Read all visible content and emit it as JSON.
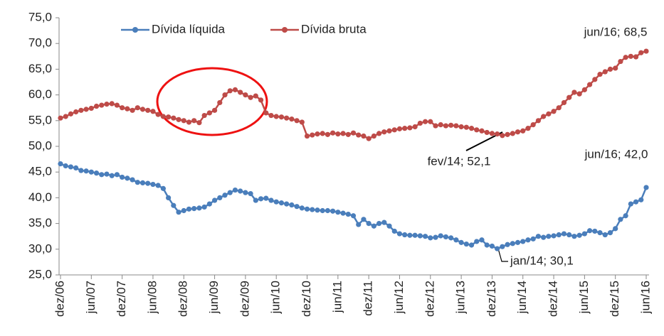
{
  "chart_data": {
    "type": "line",
    "categories": [
      "dez/06",
      null,
      null,
      null,
      null,
      null,
      "jun/07",
      null,
      null,
      null,
      null,
      null,
      "dez/07",
      null,
      null,
      null,
      null,
      null,
      "jun/08",
      null,
      null,
      null,
      null,
      null,
      "dez/08",
      null,
      null,
      null,
      null,
      null,
      "jun/09",
      null,
      null,
      null,
      null,
      null,
      "dez/09",
      null,
      null,
      null,
      null,
      null,
      "jun/10",
      null,
      null,
      null,
      null,
      null,
      "dez/10",
      null,
      null,
      null,
      null,
      null,
      "jun/11",
      null,
      null,
      null,
      null,
      null,
      "dez/11",
      null,
      null,
      null,
      null,
      null,
      "jun/12",
      null,
      null,
      null,
      null,
      null,
      "dez/12",
      null,
      null,
      null,
      null,
      null,
      "jun/13",
      null,
      null,
      null,
      null,
      null,
      "dez/13",
      null,
      null,
      null,
      null,
      null,
      "jun/14",
      null,
      null,
      null,
      null,
      null,
      "dez/14",
      null,
      null,
      null,
      null,
      null,
      "jun/15",
      null,
      null,
      null,
      null,
      null,
      "dez/15",
      null,
      null,
      null,
      null,
      null,
      "jun/16"
    ],
    "series": [
      {
        "name": "Dívida líquida",
        "color": "#4a7ebb",
        "values": [
          46.6,
          46.2,
          46.0,
          45.8,
          45.3,
          45.2,
          45.0,
          44.8,
          44.5,
          44.6,
          44.3,
          44.5,
          44.0,
          43.8,
          43.5,
          43.0,
          42.9,
          42.8,
          42.6,
          42.4,
          41.8,
          40.0,
          38.5,
          37.2,
          37.5,
          37.8,
          37.9,
          38.0,
          38.2,
          38.8,
          39.5,
          40.0,
          40.5,
          41.0,
          41.5,
          41.3,
          41.0,
          40.8,
          39.5,
          39.8,
          39.9,
          39.5,
          39.2,
          39.0,
          38.8,
          38.6,
          38.3,
          38.0,
          37.8,
          37.7,
          37.6,
          37.5,
          37.5,
          37.4,
          37.2,
          37.0,
          36.8,
          36.5,
          34.8,
          35.8,
          35.0,
          34.5,
          35.0,
          35.2,
          34.5,
          33.5,
          33.0,
          32.8,
          32.7,
          32.7,
          32.6,
          32.5,
          32.2,
          32.3,
          32.6,
          32.4,
          32.2,
          31.8,
          31.3,
          31.0,
          30.8,
          31.5,
          31.8,
          30.8,
          30.6,
          30.1,
          30.5,
          30.9,
          31.1,
          31.3,
          31.5,
          31.8,
          32.0,
          32.5,
          32.3,
          32.5,
          32.6,
          32.8,
          33.0,
          32.8,
          32.5,
          32.7,
          33.0,
          33.6,
          33.5,
          33.2,
          32.8,
          33.2,
          34.0,
          35.8,
          36.5,
          38.8,
          39.2,
          39.6,
          42.0
        ]
      },
      {
        "name": "Dívida bruta",
        "color": "#be4b48",
        "values": [
          55.5,
          55.8,
          56.3,
          56.7,
          57.0,
          57.2,
          57.4,
          57.8,
          58.0,
          58.2,
          58.3,
          58.0,
          57.5,
          57.3,
          57.0,
          57.5,
          57.2,
          57.0,
          56.8,
          56.2,
          55.8,
          55.7,
          55.5,
          55.2,
          55.0,
          54.7,
          55.0,
          54.6,
          56.0,
          56.5,
          57.0,
          58.5,
          60.0,
          60.8,
          61.0,
          60.5,
          60.0,
          59.5,
          59.8,
          59.0,
          56.5,
          56.0,
          55.8,
          55.7,
          55.5,
          55.3,
          55.0,
          54.7,
          52.0,
          52.2,
          52.4,
          52.5,
          52.3,
          52.6,
          52.4,
          52.5,
          52.3,
          52.6,
          52.2,
          52.0,
          51.5,
          52.0,
          52.5,
          52.8,
          53.0,
          53.2,
          53.4,
          53.5,
          53.6,
          53.8,
          54.5,
          54.8,
          54.8,
          54.0,
          54.2,
          54.0,
          54.1,
          54.0,
          53.8,
          53.7,
          53.5,
          53.2,
          53.0,
          52.7,
          52.5,
          52.4,
          52.1,
          52.3,
          52.5,
          52.8,
          53.0,
          53.5,
          54.2,
          55.0,
          55.8,
          56.3,
          56.8,
          57.5,
          58.5,
          59.5,
          60.5,
          60.2,
          61.0,
          62.0,
          63.0,
          64.0,
          64.5,
          65.0,
          65.2,
          66.5,
          67.3,
          67.5,
          67.4,
          68.2,
          68.5
        ]
      }
    ],
    "ylim": [
      25,
      75
    ],
    "yticks": [
      {
        "value": 25,
        "label": "25,0"
      },
      {
        "value": 30,
        "label": "30,0"
      },
      {
        "value": 35,
        "label": "35,0"
      },
      {
        "value": 40,
        "label": "40,0"
      },
      {
        "value": 45,
        "label": "45,0"
      },
      {
        "value": 50,
        "label": "50,0"
      },
      {
        "value": 55,
        "label": "55,0"
      },
      {
        "value": 60,
        "label": "60,0"
      },
      {
        "value": 65,
        "label": "65,0"
      },
      {
        "value": 70,
        "label": "70,0"
      },
      {
        "value": 75,
        "label": "75,0"
      }
    ],
    "grid": false,
    "legend": "top",
    "annotations": [
      "jun/16; 68,5",
      "jun/16; 42,0",
      "fev/14; 52,1",
      "jan/14; 30,1"
    ]
  }
}
